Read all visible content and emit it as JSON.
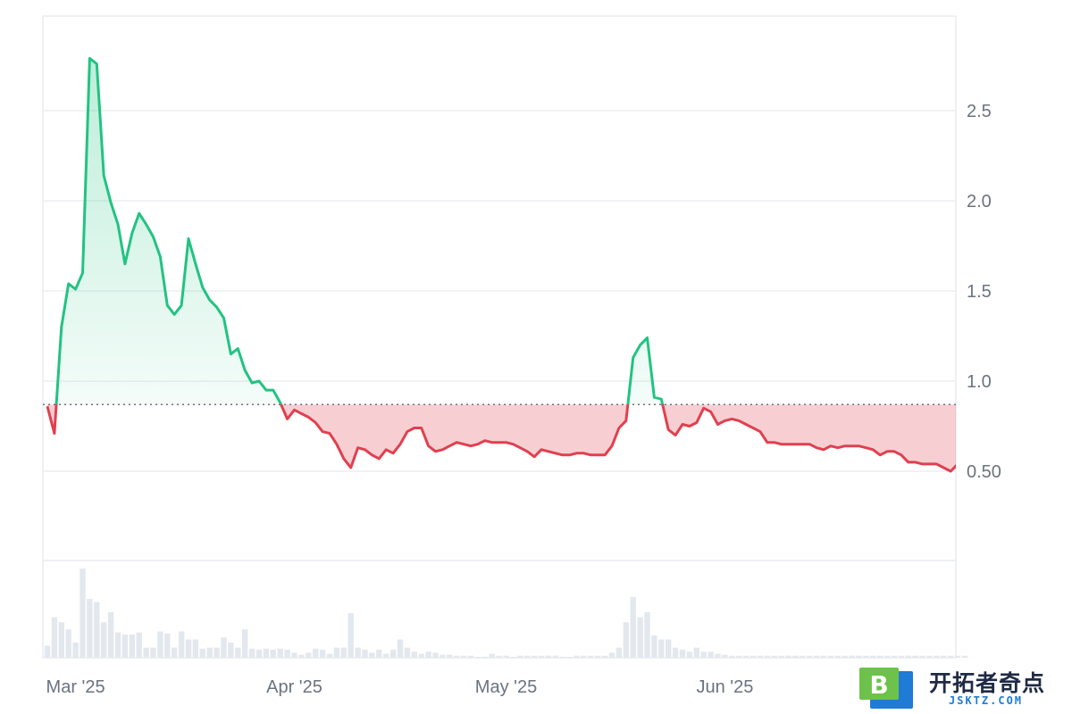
{
  "chart_data": {
    "type": "area",
    "title": "",
    "xlabel": "",
    "ylabel": "",
    "baseline": 0.87,
    "ylim": [
      0,
      3.0
    ],
    "y_ticks": [
      0.5,
      1.0,
      1.5,
      2.0,
      2.5
    ],
    "y_tick_labels": [
      "0.50",
      "1.0",
      "1.5",
      "2.0",
      "2.5"
    ],
    "x_ticks": [
      {
        "label": "Mar '25",
        "date": "2025-03-01"
      },
      {
        "label": "Apr '25",
        "date": "2025-04-01"
      },
      {
        "label": "May '25",
        "date": "2025-05-01"
      },
      {
        "label": "Jun '25",
        "date": "2025-06-01"
      }
    ],
    "colors": {
      "above": "#22c382",
      "below": "#e0404f",
      "grid": "#e9ebef",
      "volume": "#e3e8ee",
      "baseline": "#6b7280"
    },
    "start_date": "2025-02-25",
    "grid": true,
    "series": [
      {
        "values": [
          0.86,
          0.71,
          1.3,
          1.54,
          1.51,
          1.6,
          2.79,
          2.76,
          2.14,
          1.99,
          1.87,
          1.65,
          1.82,
          1.93,
          1.87,
          1.8,
          1.69,
          1.42,
          1.37,
          1.42,
          1.79,
          1.65,
          1.52,
          1.45,
          1.41,
          1.35,
          1.15,
          1.18,
          1.06,
          0.99,
          1.0,
          0.95,
          0.95,
          0.88,
          0.79,
          0.84,
          0.82,
          0.8,
          0.77,
          0.72,
          0.71,
          0.65,
          0.57,
          0.52,
          0.63,
          0.62,
          0.59,
          0.57,
          0.62,
          0.6,
          0.65,
          0.72,
          0.74,
          0.74,
          0.64,
          0.61,
          0.62,
          0.64,
          0.66,
          0.65,
          0.64,
          0.65,
          0.67,
          0.66,
          0.66,
          0.66,
          0.65,
          0.63,
          0.61,
          0.58,
          0.62,
          0.61,
          0.6,
          0.59,
          0.59,
          0.6,
          0.6,
          0.59,
          0.59,
          0.59,
          0.64,
          0.74,
          0.78,
          1.13,
          1.2,
          1.24,
          0.91,
          0.9,
          0.73,
          0.7,
          0.76,
          0.75,
          0.77,
          0.85,
          0.83,
          0.76,
          0.78,
          0.79,
          0.78,
          0.76,
          0.74,
          0.72,
          0.66,
          0.66,
          0.65,
          0.65,
          0.65,
          0.65,
          0.65,
          0.63,
          0.62,
          0.64,
          0.63,
          0.64,
          0.64,
          0.64,
          0.63,
          0.62,
          0.59,
          0.61,
          0.61,
          0.59,
          0.55,
          0.55,
          0.54,
          0.54,
          0.54,
          0.52,
          0.5,
          0.54,
          0.61
        ]
      }
    ],
    "volume": [
      0.12,
      0.4,
      0.35,
      0.28,
      0.15,
      0.88,
      0.58,
      0.55,
      0.35,
      0.45,
      0.25,
      0.23,
      0.23,
      0.25,
      0.1,
      0.1,
      0.26,
      0.24,
      0.1,
      0.26,
      0.18,
      0.18,
      0.09,
      0.1,
      0.1,
      0.2,
      0.15,
      0.1,
      0.28,
      0.09,
      0.08,
      0.09,
      0.08,
      0.09,
      0.08,
      0.05,
      0.03,
      0.05,
      0.09,
      0.08,
      0.04,
      0.1,
      0.1,
      0.44,
      0.1,
      0.08,
      0.05,
      0.08,
      0.04,
      0.08,
      0.18,
      0.1,
      0.06,
      0.04,
      0.06,
      0.05,
      0.03,
      0.03,
      0.02,
      0.02,
      0.02,
      0.01,
      0.01,
      0.04,
      0.02,
      0.02,
      0.01,
      0.02,
      0.02,
      0.02,
      0.02,
      0.02,
      0.02,
      0.01,
      0.01,
      0.02,
      0.02,
      0.02,
      0.02,
      0.02,
      0.05,
      0.1,
      0.35,
      0.6,
      0.4,
      0.45,
      0.22,
      0.18,
      0.18,
      0.1,
      0.08,
      0.06,
      0.1,
      0.06,
      0.06,
      0.04,
      0.03,
      0.02,
      0.02,
      0.02,
      0.02,
      0.02,
      0.02,
      0.02,
      0.02,
      0.02,
      0.02,
      0.02,
      0.02,
      0.02,
      0.02,
      0.02,
      0.02,
      0.02,
      0.02,
      0.02,
      0.02,
      0.02,
      0.02,
      0.02,
      0.02,
      0.02,
      0.02,
      0.02,
      0.02,
      0.02,
      0.02,
      0.02,
      0.02,
      0.02,
      0.02
    ]
  },
  "watermark": {
    "badge_letter": "B",
    "title": "开拓者奇点",
    "subtitle": "JSKTZ.COM",
    "badge_colors": [
      "#6cc24a",
      "#1f7bd6"
    ]
  }
}
